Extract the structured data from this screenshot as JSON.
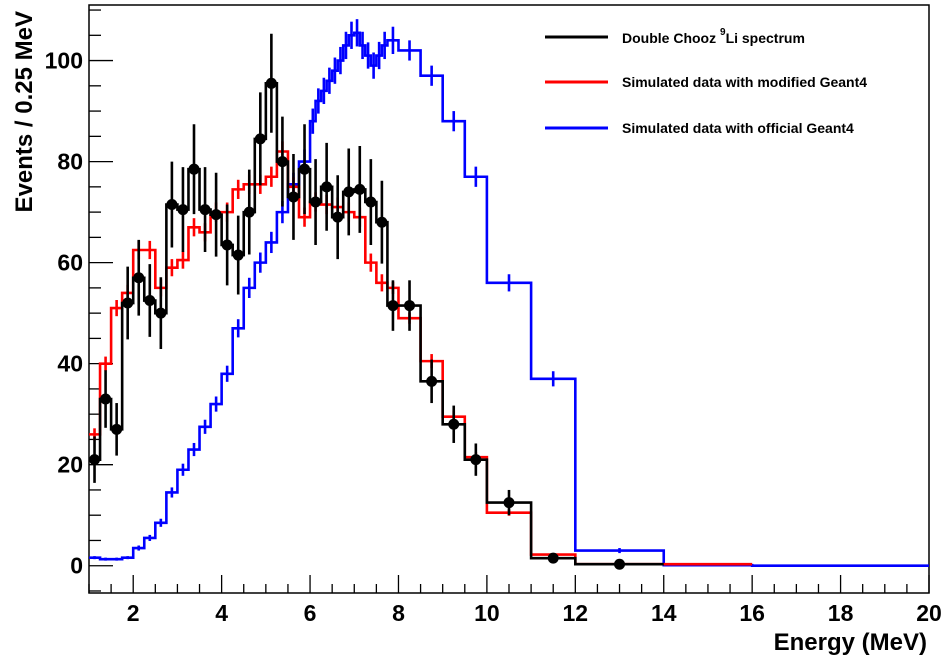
{
  "chart_data": {
    "type": "histogram",
    "title": "",
    "xlabel": "Energy (MeV)",
    "ylabel": "Events / 0.25 MeV",
    "xlim": [
      1,
      20
    ],
    "ylim": [
      -5.4,
      111
    ],
    "grid": false,
    "legend_position": "top-right",
    "x_ticks": [
      2,
      4,
      6,
      8,
      10,
      12,
      14,
      16,
      18,
      20
    ],
    "y_ticks": [
      0,
      20,
      40,
      60,
      80,
      100
    ],
    "x_tick_labels": [
      "2",
      "4",
      "6",
      "8",
      "10",
      "12",
      "14",
      "16",
      "18",
      "20"
    ],
    "y_tick_labels": [
      "0",
      "20",
      "40",
      "60",
      "80",
      "100"
    ],
    "legend": [
      {
        "label_pre": "Double Chooz ",
        "label_sup": "9",
        "label_post": "Li spectrum",
        "color": "#000000"
      },
      {
        "label": "Simulated data with modified Geant4",
        "color": "#ff0000"
      },
      {
        "label": "Simulated data with official Geant4",
        "color": "#0000ff"
      }
    ],
    "series": [
      {
        "name": "Double Chooz 9Li spectrum",
        "color": "#000000",
        "style": "points-with-errors-and-histogram",
        "bin_edges": [
          1,
          1.25,
          1.5,
          1.75,
          2,
          2.25,
          2.5,
          2.75,
          3,
          3.25,
          3.5,
          3.75,
          4,
          4.25,
          4.5,
          4.75,
          5,
          5.25,
          5.5,
          5.75,
          6,
          6.25,
          6.5,
          6.75,
          7,
          7.25,
          7.5,
          7.75,
          8,
          8.5,
          9,
          9.5,
          10,
          11,
          12,
          14
        ],
        "values": [
          21,
          33,
          27,
          52,
          57,
          52.5,
          50,
          71.5,
          70.5,
          78.5,
          70.5,
          69.5,
          63.5,
          61.5,
          70,
          84.5,
          95.5,
          80,
          73,
          78.5,
          72,
          75,
          69,
          74,
          74.5,
          72,
          68,
          51.5,
          51.5,
          36.5,
          28,
          21,
          12.5,
          1.5,
          0.3
        ],
        "errors": [
          4.6,
          5.7,
          5.2,
          7.2,
          7.5,
          7.2,
          7.1,
          8.5,
          8.4,
          8.9,
          8.4,
          8.3,
          8.0,
          7.8,
          8.4,
          9.2,
          9.8,
          8.9,
          8.5,
          8.9,
          8.5,
          8.7,
          8.3,
          8.6,
          8.6,
          8.5,
          8.2,
          5,
          5,
          4.3,
          3.7,
          3.2,
          2.5,
          0.9,
          0.4
        ]
      },
      {
        "name": "Simulated data with modified Geant4",
        "color": "#ff0000",
        "style": "histogram",
        "bin_edges": [
          1,
          1.25,
          1.5,
          1.75,
          2,
          2.25,
          2.5,
          2.75,
          3,
          3.25,
          3.5,
          3.75,
          4,
          4.25,
          4.5,
          4.75,
          5,
          5.25,
          5.5,
          5.75,
          6,
          6.25,
          6.5,
          6.75,
          7,
          7.25,
          7.5,
          7.75,
          8,
          8.5,
          9,
          9.5,
          10,
          11,
          12,
          16
        ],
        "values": [
          26,
          40,
          51,
          54,
          62.5,
          62.5,
          55,
          59,
          60.5,
          67,
          66,
          70,
          70,
          74.5,
          75.5,
          75.5,
          77,
          82,
          75,
          69,
          72,
          71.5,
          71,
          70,
          69,
          60,
          56,
          55,
          49,
          40.5,
          29.5,
          21.5,
          10.5,
          2.2,
          0.3
        ],
        "errors": [
          1.2,
          1.4,
          1.6,
          1.6,
          1.8,
          1.8,
          1.7,
          1.7,
          1.7,
          1.8,
          1.8,
          1.9,
          1.9,
          1.9,
          1.9,
          1.9,
          2,
          2,
          1.9,
          1.9,
          1.9,
          1.9,
          1.9,
          1.9,
          1.9,
          1.8,
          1.7,
          1.2,
          1.1,
          1.4,
          1.2,
          1,
          0.6,
          0.3,
          0.1
        ]
      },
      {
        "name": "Simulated data with official Geant4",
        "color": "#0000ff",
        "style": "histogram",
        "bin_edges": [
          1,
          1.25,
          1.5,
          1.75,
          2,
          2.25,
          2.5,
          2.75,
          3,
          3.25,
          3.5,
          3.75,
          4,
          4.25,
          4.5,
          4.75,
          5,
          5.25,
          5.5,
          5.75,
          6,
          6.125,
          6.25,
          6.375,
          6.5,
          6.625,
          6.75,
          6.875,
          7,
          7.125,
          7.25,
          7.375,
          7.5,
          7.625,
          7.75,
          8,
          8.5,
          9,
          9.5,
          10,
          11,
          12,
          14,
          16,
          20
        ],
        "values": [
          1.6,
          1.3,
          1.3,
          1.6,
          3.5,
          5.5,
          8.5,
          14.5,
          19,
          23,
          27.5,
          32,
          38,
          47,
          55,
          60,
          64,
          70,
          75.5,
          80,
          88,
          92,
          94,
          96,
          98,
          100,
          103,
          105,
          105.5,
          103,
          101,
          99,
          101,
          103,
          104,
          102,
          97,
          88,
          77,
          56,
          37,
          3,
          0.1,
          0
        ],
        "errors": [
          0.3,
          0.3,
          0.3,
          0.3,
          0.5,
          0.6,
          0.8,
          1,
          1.2,
          1.3,
          1.4,
          1.5,
          1.6,
          1.8,
          2,
          2,
          2.1,
          2.2,
          2.3,
          2.4,
          2.5,
          2.5,
          2.6,
          2.6,
          2.6,
          2.7,
          2.7,
          2.7,
          2.7,
          2.7,
          2.6,
          2.6,
          2.7,
          2.7,
          2.7,
          2,
          2,
          2,
          2,
          1.7,
          1.5,
          0.5,
          0,
          0
        ]
      }
    ]
  }
}
